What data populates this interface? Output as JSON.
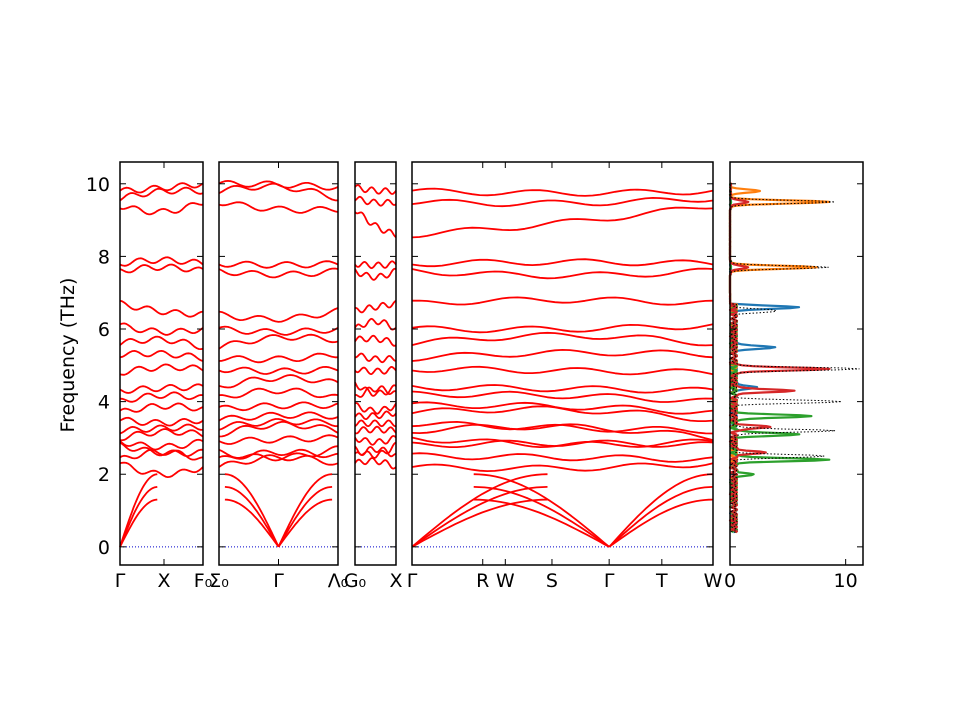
{
  "chart_data": {
    "type": "line",
    "ylabel": "Frequency (THz)",
    "ylim": [
      -0.5,
      10.6
    ],
    "yticks": [
      "0",
      "2",
      "4",
      "6",
      "8",
      "10"
    ],
    "band_color": "#ff0000",
    "zero_line_color": "#0000cc",
    "panels": [
      {
        "id": "p1",
        "xlim": [
          0,
          1
        ],
        "ticks": [
          {
            "x": 0,
            "label": "Γ"
          },
          {
            "x": 0.53,
            "label": "X"
          },
          {
            "x": 1,
            "label": "F₀"
          }
        ]
      },
      {
        "id": "p2",
        "xlim": [
          0,
          1
        ],
        "ticks": [
          {
            "x": 0,
            "label": "Σ₀"
          },
          {
            "x": 0.5,
            "label": "Γ"
          },
          {
            "x": 1,
            "label": "Λ₀"
          }
        ]
      },
      {
        "id": "p3",
        "xlim": [
          0,
          1
        ],
        "ticks": [
          {
            "x": 0,
            "label": "G₀"
          },
          {
            "x": 1,
            "label": "X"
          }
        ]
      },
      {
        "id": "p4",
        "xlim": [
          0,
          1
        ],
        "ticks": [
          {
            "x": 0,
            "label": "Γ"
          },
          {
            "x": 0.235,
            "label": "R"
          },
          {
            "x": 0.31,
            "label": "W"
          },
          {
            "x": 0.465,
            "label": "S"
          },
          {
            "x": 0.655,
            "label": "Γ"
          },
          {
            "x": 0.83,
            "label": "T"
          },
          {
            "x": 1,
            "label": "W"
          }
        ]
      }
    ],
    "band_frequencies_thz": [
      [
        2.3,
        2.4,
        2.8,
        2.9,
        3.0,
        3.2,
        3.5,
        3.7,
        4.0,
        4.3,
        4.8,
        5.3,
        5.6,
        6.1,
        6.7,
        7.6,
        7.8,
        9.4,
        9.6,
        9.8
      ],
      [
        2.2,
        2.4,
        2.6,
        2.9,
        3.1,
        3.3,
        3.5,
        3.8,
        4.1,
        4.4,
        4.9,
        5.2,
        5.5,
        6.0,
        6.4,
        7.6,
        7.8,
        9.5,
        9.8,
        10.0
      ],
      [
        2.3,
        2.5,
        2.7,
        3.0,
        3.2,
        3.4,
        3.6,
        3.9,
        4.1,
        4.5,
        4.9,
        5.3,
        5.7,
        6.0,
        6.5,
        7.6,
        7.8,
        9.3,
        9.6,
        9.9
      ],
      [
        2.2,
        2.5,
        2.8,
        3.0,
        3.2,
        3.4,
        3.7,
        3.9,
        4.2,
        4.4,
        4.9,
        5.2,
        5.6,
        6.0,
        6.7,
        7.6,
        7.8,
        8.6,
        9.5,
        9.8
      ]
    ],
    "acoustic_max_thz": 2.0,
    "dos": {
      "xlim": [
        0,
        11.5
      ],
      "xticks": [
        "0",
        "10"
      ],
      "series": [
        {
          "color": "#1f77b4",
          "peaks": [
            [
              6.6,
              5.5
            ],
            [
              5.5,
              3.5
            ],
            [
              4.4,
              2.0
            ]
          ]
        },
        {
          "color": "#ff7f0e",
          "peaks": [
            [
              9.5,
              8.5
            ],
            [
              7.7,
              7.5
            ],
            [
              9.8,
              2.5
            ]
          ]
        },
        {
          "color": "#2ca02c",
          "peaks": [
            [
              3.6,
              6.5
            ],
            [
              3.1,
              5.5
            ],
            [
              2.4,
              8.0
            ],
            [
              2.0,
              1.5
            ]
          ]
        },
        {
          "color": "#d62728",
          "peaks": [
            [
              4.9,
              8.0
            ],
            [
              4.3,
              5.0
            ],
            [
              3.3,
              3.0
            ],
            [
              2.6,
              2.5
            ],
            [
              9.5,
              1.5
            ],
            [
              7.7,
              1.5
            ]
          ]
        },
        {
          "color": "#000000",
          "peaks": [
            [
              4.9,
              11.0
            ],
            [
              4.0,
              9.5
            ],
            [
              3.2,
              8.5
            ],
            [
              2.5,
              8.0
            ],
            [
              9.5,
              9.0
            ],
            [
              7.7,
              8.5
            ],
            [
              6.5,
              4.0
            ]
          ]
        }
      ]
    }
  }
}
